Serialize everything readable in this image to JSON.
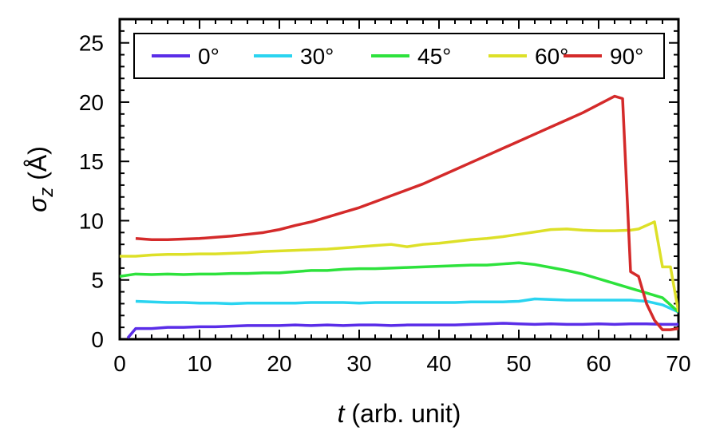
{
  "chart_data": {
    "type": "line",
    "xlabel": {
      "var": "t",
      "rest": " (arb. unit)"
    },
    "ylabel": {
      "var": "σ",
      "sub": "z",
      "rest": " (Å)"
    },
    "xlim": [
      0,
      70
    ],
    "ylim": [
      0,
      27
    ],
    "xticks": [
      0,
      10,
      20,
      30,
      40,
      50,
      60,
      70
    ],
    "yticks": [
      0,
      5,
      10,
      15,
      20,
      25
    ],
    "legend_position": "top",
    "grid": false,
    "series": [
      {
        "name": "0°",
        "color": "#5a2de8",
        "x": [
          1,
          2,
          4,
          6,
          8,
          10,
          12,
          14,
          16,
          18,
          20,
          22,
          24,
          26,
          28,
          30,
          32,
          34,
          36,
          38,
          40,
          42,
          44,
          46,
          48,
          50,
          52,
          54,
          56,
          58,
          60,
          62,
          64,
          66,
          68,
          70
        ],
        "y": [
          0.1,
          0.9,
          0.9,
          1.0,
          1.0,
          1.05,
          1.05,
          1.1,
          1.15,
          1.15,
          1.15,
          1.2,
          1.15,
          1.2,
          1.15,
          1.2,
          1.2,
          1.15,
          1.2,
          1.2,
          1.2,
          1.2,
          1.25,
          1.3,
          1.35,
          1.3,
          1.25,
          1.3,
          1.25,
          1.25,
          1.3,
          1.25,
          1.3,
          1.3,
          1.25,
          1.25
        ]
      },
      {
        "name": "30°",
        "color": "#2ad4f0",
        "x": [
          2,
          4,
          6,
          8,
          10,
          12,
          14,
          16,
          18,
          20,
          22,
          24,
          26,
          28,
          30,
          32,
          34,
          36,
          38,
          40,
          42,
          44,
          46,
          48,
          50,
          52,
          54,
          56,
          58,
          60,
          62,
          64,
          66,
          68,
          70
        ],
        "y": [
          3.2,
          3.15,
          3.1,
          3.1,
          3.05,
          3.05,
          3.0,
          3.05,
          3.05,
          3.05,
          3.05,
          3.1,
          3.1,
          3.1,
          3.05,
          3.1,
          3.1,
          3.1,
          3.1,
          3.1,
          3.1,
          3.15,
          3.15,
          3.15,
          3.2,
          3.4,
          3.35,
          3.3,
          3.3,
          3.3,
          3.3,
          3.3,
          3.2,
          2.9,
          2.3
        ]
      },
      {
        "name": "45°",
        "color": "#2de23c",
        "x": [
          0,
          2,
          4,
          6,
          8,
          10,
          12,
          14,
          16,
          18,
          20,
          22,
          24,
          26,
          28,
          30,
          32,
          34,
          36,
          38,
          40,
          42,
          44,
          46,
          48,
          50,
          52,
          54,
          56,
          58,
          60,
          62,
          64,
          66,
          68,
          70
        ],
        "y": [
          5.3,
          5.5,
          5.45,
          5.5,
          5.45,
          5.5,
          5.5,
          5.55,
          5.55,
          5.6,
          5.6,
          5.7,
          5.8,
          5.8,
          5.9,
          5.95,
          5.95,
          6.0,
          6.05,
          6.1,
          6.15,
          6.2,
          6.25,
          6.25,
          6.35,
          6.45,
          6.3,
          6.05,
          5.8,
          5.5,
          5.1,
          4.7,
          4.3,
          3.9,
          3.5,
          2.3
        ]
      },
      {
        "name": "60°",
        "color": "#dde028",
        "x": [
          0,
          2,
          4,
          6,
          8,
          10,
          12,
          14,
          16,
          18,
          20,
          22,
          24,
          26,
          28,
          30,
          32,
          34,
          36,
          38,
          40,
          42,
          44,
          46,
          48,
          50,
          52,
          54,
          56,
          58,
          60,
          62,
          64,
          65,
          66,
          67,
          68,
          69,
          70
        ],
        "y": [
          7.0,
          7.0,
          7.1,
          7.15,
          7.15,
          7.2,
          7.2,
          7.25,
          7.3,
          7.4,
          7.45,
          7.5,
          7.55,
          7.6,
          7.7,
          7.8,
          7.9,
          8.0,
          7.8,
          8.0,
          8.1,
          8.25,
          8.4,
          8.5,
          8.65,
          8.85,
          9.05,
          9.25,
          9.3,
          9.2,
          9.15,
          9.15,
          9.2,
          9.3,
          9.6,
          9.9,
          6.1,
          6.1,
          2.3
        ]
      },
      {
        "name": "90°",
        "color": "#d42a2a",
        "x": [
          2,
          4,
          6,
          8,
          10,
          12,
          14,
          16,
          18,
          20,
          22,
          24,
          26,
          28,
          30,
          32,
          34,
          36,
          38,
          40,
          42,
          44,
          46,
          48,
          50,
          52,
          54,
          56,
          58,
          60,
          62,
          63,
          64,
          65,
          66,
          67,
          68,
          69,
          70
        ],
        "y": [
          8.5,
          8.4,
          8.4,
          8.45,
          8.5,
          8.6,
          8.7,
          8.85,
          9.0,
          9.25,
          9.6,
          9.9,
          10.3,
          10.7,
          11.1,
          11.6,
          12.1,
          12.6,
          13.1,
          13.7,
          14.3,
          14.9,
          15.5,
          16.1,
          16.7,
          17.3,
          17.9,
          18.5,
          19.1,
          19.8,
          20.5,
          20.3,
          5.7,
          5.3,
          3.0,
          1.6,
          0.8,
          0.8,
          0.9
        ]
      }
    ]
  }
}
